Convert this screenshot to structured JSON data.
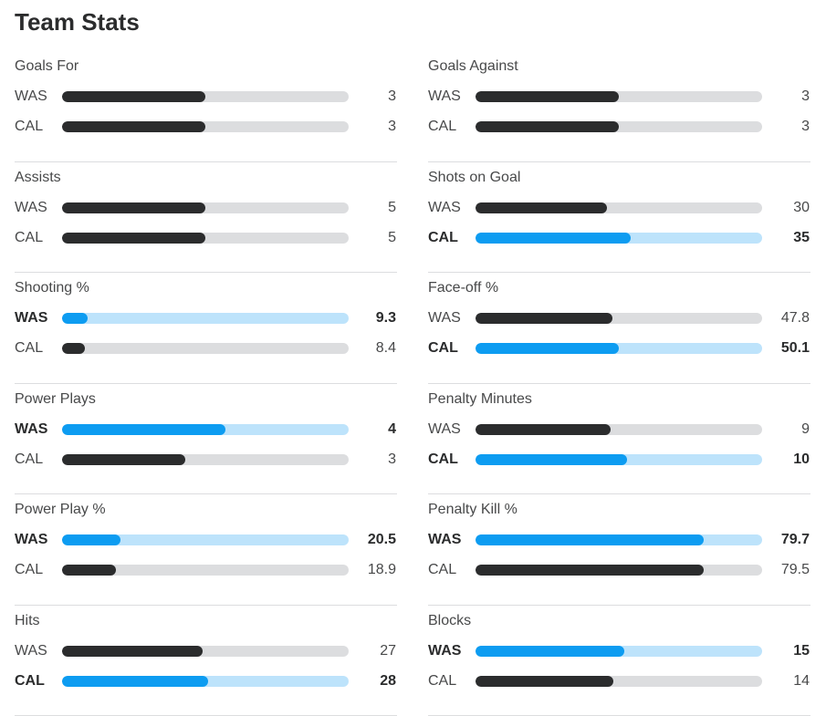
{
  "page": {
    "title": "Team Stats"
  },
  "stats": [
    {
      "label": "Goals For",
      "rows": [
        {
          "team": "WAS",
          "value": "3",
          "fill": 0.5,
          "leader": false
        },
        {
          "team": "CAL",
          "value": "3",
          "fill": 0.5,
          "leader": false
        }
      ]
    },
    {
      "label": "Goals Against",
      "rows": [
        {
          "team": "WAS",
          "value": "3",
          "fill": 0.5,
          "leader": false
        },
        {
          "team": "CAL",
          "value": "3",
          "fill": 0.5,
          "leader": false
        }
      ]
    },
    {
      "label": "Assists",
      "rows": [
        {
          "team": "WAS",
          "value": "5",
          "fill": 0.5,
          "leader": false
        },
        {
          "team": "CAL",
          "value": "5",
          "fill": 0.5,
          "leader": false
        }
      ]
    },
    {
      "label": "Shots on Goal",
      "rows": [
        {
          "team": "WAS",
          "value": "30",
          "fill": 0.46,
          "leader": false
        },
        {
          "team": "CAL",
          "value": "35",
          "fill": 0.54,
          "leader": true
        }
      ]
    },
    {
      "label": "Shooting %",
      "rows": [
        {
          "team": "WAS",
          "value": "9.3",
          "fill": 0.09,
          "leader": true
        },
        {
          "team": "CAL",
          "value": "8.4",
          "fill": 0.08,
          "leader": false
        }
      ]
    },
    {
      "label": "Face-off %",
      "rows": [
        {
          "team": "WAS",
          "value": "47.8",
          "fill": 0.478,
          "leader": false
        },
        {
          "team": "CAL",
          "value": "50.1",
          "fill": 0.501,
          "leader": true
        }
      ]
    },
    {
      "label": "Power Plays",
      "rows": [
        {
          "team": "WAS",
          "value": "4",
          "fill": 0.57,
          "leader": true
        },
        {
          "team": "CAL",
          "value": "3",
          "fill": 0.43,
          "leader": false
        }
      ]
    },
    {
      "label": "Penalty Minutes",
      "rows": [
        {
          "team": "WAS",
          "value": "9",
          "fill": 0.47,
          "leader": false
        },
        {
          "team": "CAL",
          "value": "10",
          "fill": 0.53,
          "leader": true
        }
      ]
    },
    {
      "label": "Power Play %",
      "rows": [
        {
          "team": "WAS",
          "value": "20.5",
          "fill": 0.205,
          "leader": true
        },
        {
          "team": "CAL",
          "value": "18.9",
          "fill": 0.189,
          "leader": false
        }
      ]
    },
    {
      "label": "Penalty Kill %",
      "rows": [
        {
          "team": "WAS",
          "value": "79.7",
          "fill": 0.797,
          "leader": true
        },
        {
          "team": "CAL",
          "value": "79.5",
          "fill": 0.795,
          "leader": false
        }
      ]
    },
    {
      "label": "Hits",
      "rows": [
        {
          "team": "WAS",
          "value": "27",
          "fill": 0.49,
          "leader": false
        },
        {
          "team": "CAL",
          "value": "28",
          "fill": 0.51,
          "leader": true
        }
      ]
    },
    {
      "label": "Blocks",
      "rows": [
        {
          "team": "WAS",
          "value": "15",
          "fill": 0.52,
          "leader": true
        },
        {
          "team": "CAL",
          "value": "14",
          "fill": 0.48,
          "leader": false
        }
      ]
    }
  ]
}
